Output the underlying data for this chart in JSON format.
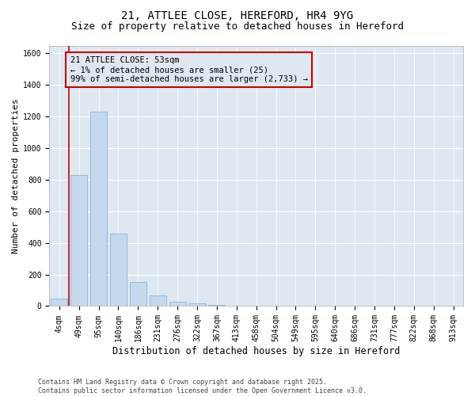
{
  "title_line1": "21, ATTLEE CLOSE, HEREFORD, HR4 9YG",
  "title_line2": "Size of property relative to detached houses in Hereford",
  "xlabel": "Distribution of detached houses by size in Hereford",
  "ylabel": "Number of detached properties",
  "categories": [
    "4sqm",
    "49sqm",
    "95sqm",
    "140sqm",
    "186sqm",
    "231sqm",
    "276sqm",
    "322sqm",
    "367sqm",
    "413sqm",
    "458sqm",
    "504sqm",
    "549sqm",
    "595sqm",
    "640sqm",
    "686sqm",
    "731sqm",
    "777sqm",
    "822sqm",
    "868sqm",
    "913sqm"
  ],
  "values": [
    50,
    830,
    1230,
    460,
    155,
    70,
    25,
    15,
    5,
    2,
    1,
    0,
    0,
    0,
    0,
    0,
    0,
    0,
    0,
    0,
    0
  ],
  "bar_color": "#c5d8ee",
  "bar_edgecolor": "#7aadd4",
  "vline_color": "#cc0000",
  "annotation_text": "21 ATTLEE CLOSE: 53sqm\n← 1% of detached houses are smaller (25)\n99% of semi-detached houses are larger (2,733) →",
  "annotation_box_edgecolor": "#cc0000",
  "ylim": [
    0,
    1650
  ],
  "yticks": [
    0,
    200,
    400,
    600,
    800,
    1000,
    1200,
    1400,
    1600
  ],
  "plot_bg_color": "#dde8f0",
  "fig_bg_color": "#ffffff",
  "grid_color": "#ffffff",
  "footer_text": "Contains HM Land Registry data © Crown copyright and database right 2025.\nContains public sector information licensed under the Open Government Licence v3.0.",
  "title_fontsize": 10,
  "subtitle_fontsize": 9,
  "annot_fontsize": 7.5,
  "ylabel_fontsize": 8,
  "xlabel_fontsize": 8.5,
  "tick_fontsize": 7,
  "footer_fontsize": 6
}
